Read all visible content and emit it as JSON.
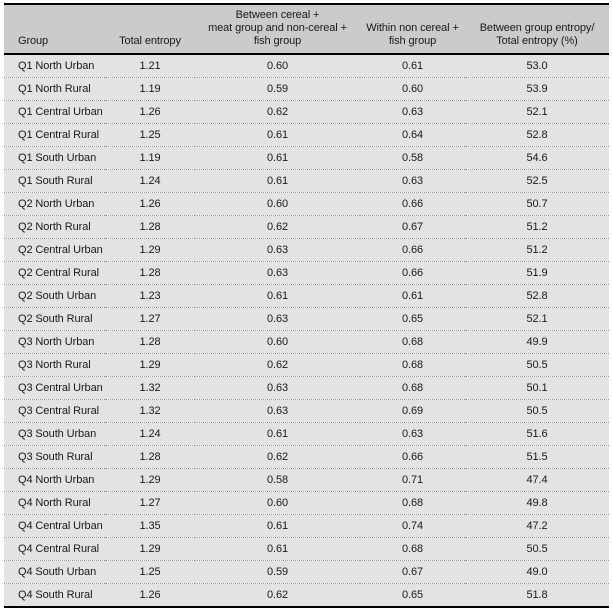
{
  "colors": {
    "header_bg": "#cbcbcb",
    "row_bg": "#e3e3e3",
    "rule": "#000000",
    "dotted_divider": "#9a9a9a",
    "text": "#1a1a1a"
  },
  "table": {
    "columns": [
      "Group",
      "Total entropy",
      "Between cereal +\nmeat group and non-cereal +\nfish group",
      "Within non cereal +\nfish group",
      "Between group entropy/\nTotal entropy (%)"
    ],
    "rows": [
      [
        "Q1 North Urban",
        "1.21",
        "0.60",
        "0.61",
        "53.0"
      ],
      [
        "Q1 North Rural",
        "1.19",
        "0.59",
        "0.60",
        "53.9"
      ],
      [
        "Q1 Central Urban",
        "1.26",
        "0.62",
        "0.63",
        "52.1"
      ],
      [
        "Q1 Central Rural",
        "1.25",
        "0.61",
        "0.64",
        "52.8"
      ],
      [
        "Q1 South Urban",
        "1.19",
        "0.61",
        "0.58",
        "54.6"
      ],
      [
        "Q1 South Rural",
        "1.24",
        "0.61",
        "0.63",
        "52.5"
      ],
      [
        "Q2 North Urban",
        "1.26",
        "0.60",
        "0.66",
        "50.7"
      ],
      [
        "Q2 North Rural",
        "1.28",
        "0.62",
        "0.67",
        "51.2"
      ],
      [
        "Q2 Central Urban",
        "1.29",
        "0.63",
        "0.66",
        "51.2"
      ],
      [
        "Q2 Central Rural",
        "1.28",
        "0.63",
        "0.66",
        "51.9"
      ],
      [
        "Q2 South Urban",
        "1.23",
        "0.61",
        "0.61",
        "52.8"
      ],
      [
        "Q2 South Rural",
        "1.27",
        "0.63",
        "0.65",
        "52.1"
      ],
      [
        "Q3 North Urban",
        "1.28",
        "0.60",
        "0.68",
        "49.9"
      ],
      [
        "Q3 North Rural",
        "1.29",
        "0.62",
        "0.68",
        "50.5"
      ],
      [
        "Q3 Central Urban",
        "1.32",
        "0.63",
        "0.68",
        "50.1"
      ],
      [
        "Q3 Central Rural",
        "1.32",
        "0.63",
        "0.69",
        "50.5"
      ],
      [
        "Q3 South Urban",
        "1.24",
        "0.61",
        "0.63",
        "51.6"
      ],
      [
        "Q3 South Rural",
        "1.28",
        "0.62",
        "0.66",
        "51.5"
      ],
      [
        "Q4 North Urban",
        "1.29",
        "0.58",
        "0.71",
        "47.4"
      ],
      [
        "Q4 North Rural",
        "1.27",
        "0.60",
        "0.68",
        "49.8"
      ],
      [
        "Q4 Central Urban",
        "1.35",
        "0.61",
        "0.74",
        "47.2"
      ],
      [
        "Q4 Central Rural",
        "1.29",
        "0.61",
        "0.68",
        "50.5"
      ],
      [
        "Q4 South Urban",
        "1.25",
        "0.59",
        "0.67",
        "49.0"
      ],
      [
        "Q4 South Rural",
        "1.26",
        "0.62",
        "0.65",
        "51.8"
      ]
    ]
  }
}
